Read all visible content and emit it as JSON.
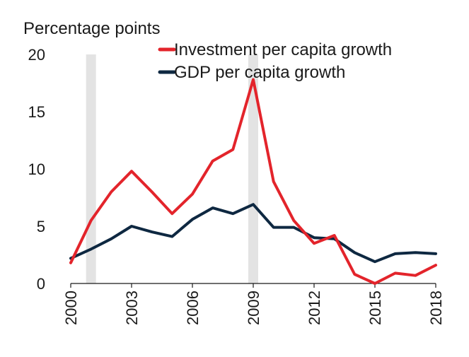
{
  "chart_data": {
    "type": "line",
    "ylabel": "Percentage points",
    "ylim": [
      0,
      20
    ],
    "yticks": [
      0,
      5,
      10,
      15,
      20
    ],
    "xlim": [
      2000,
      2018
    ],
    "xticks": [
      2000,
      2003,
      2006,
      2009,
      2012,
      2015,
      2018
    ],
    "shaded_years": [
      2001,
      2009
    ],
    "legend_position": "top-right",
    "x": [
      2000,
      2001,
      2002,
      2003,
      2004,
      2005,
      2006,
      2007,
      2008,
      2009,
      2010,
      2011,
      2012,
      2013,
      2014,
      2015,
      2016,
      2017,
      2018
    ],
    "series": [
      {
        "name": "Investment per capita growth",
        "color": "#e3242b",
        "values": [
          1.8,
          5.5,
          8.0,
          9.8,
          8.0,
          6.1,
          7.8,
          10.7,
          11.7,
          17.8,
          8.9,
          5.5,
          3.5,
          4.2,
          0.8,
          0.0,
          0.9,
          0.7,
          1.6
        ]
      },
      {
        "name": "GDP per capita growth",
        "color": "#0e2841",
        "values": [
          2.2,
          3.0,
          3.9,
          5.0,
          4.5,
          4.1,
          5.6,
          6.6,
          6.1,
          6.9,
          4.9,
          4.9,
          4.0,
          3.9,
          2.7,
          1.9,
          2.6,
          2.7,
          2.6
        ]
      }
    ]
  }
}
